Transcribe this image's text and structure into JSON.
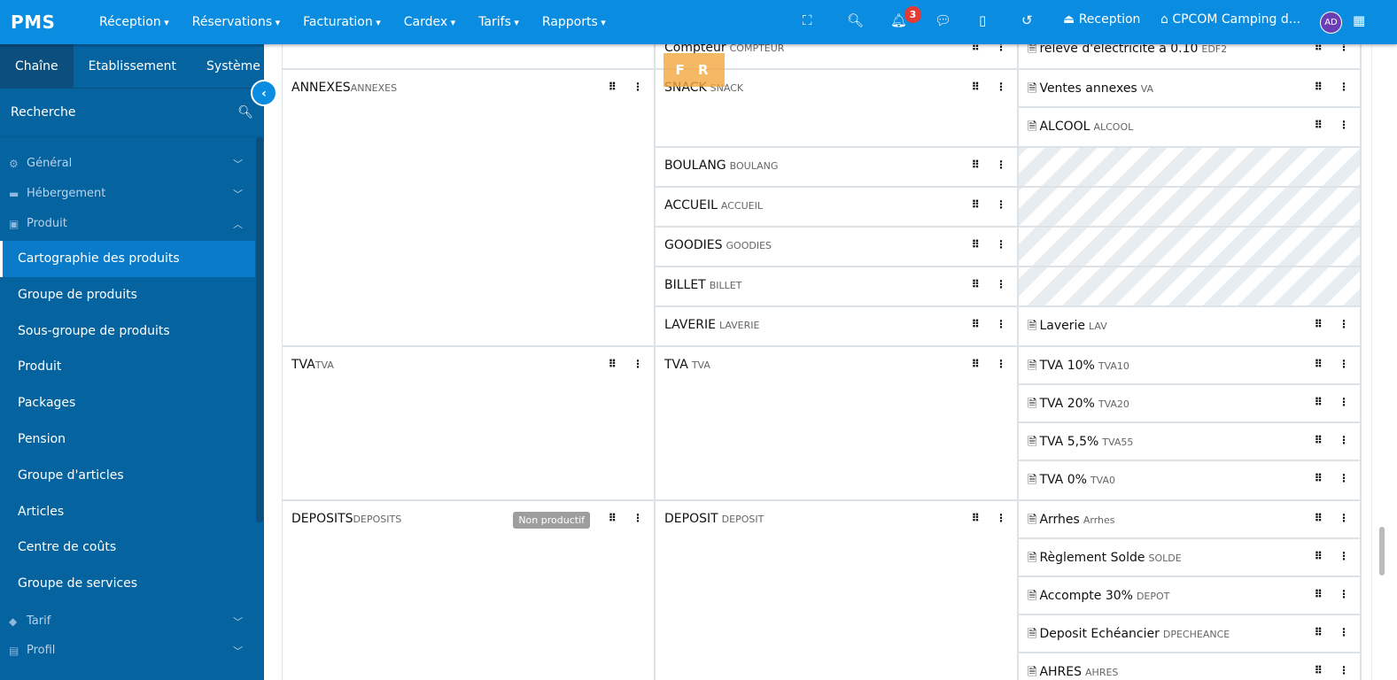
{
  "topbar": {
    "logo": "PMS",
    "nav": [
      "Réception",
      "Réservations",
      "Facturation",
      "Cardex",
      "Tarifs",
      "Rapports"
    ],
    "notifications": "3",
    "reception": "Reception",
    "establishment": "CPCOM Camping d...",
    "avatar": "AD",
    "icons": [
      "fullscreen-icon",
      "search-icon",
      "bell-icon",
      "chat-icon",
      "tablet-icon",
      "history-icon",
      "inbox-icon",
      "home-icon",
      "apps-grid-icon"
    ]
  },
  "sidebar": {
    "tabs": [
      "Chaîne",
      "Etablissement",
      "Système"
    ],
    "active_tab": "Chaîne",
    "search_placeholder": "Recherche",
    "sections_top": [
      {
        "label": "Général",
        "icon": "cogs-icon"
      },
      {
        "label": "Hébergement",
        "icon": "bed-icon"
      },
      {
        "label": "Produit",
        "icon": "box-icon"
      }
    ],
    "items": [
      "Cartographie des produits",
      "Groupe de produits",
      "Sous-groupe de produits",
      "Produit",
      "Packages",
      "Pension",
      "Groupe d'articles",
      "Articles",
      "Centre de coûts",
      "Groupe de services"
    ],
    "active_item": "Cartographie des produits",
    "sections_bottom": [
      {
        "label": "Tarif",
        "icon": "tag-icon"
      },
      {
        "label": "Profil",
        "icon": "id-card-icon"
      }
    ]
  },
  "language_badge": "F R",
  "groups": [
    {
      "name": "",
      "code": "",
      "subgroups": [
        {
          "name": "Compteur",
          "code": "COMPTEUR",
          "products": [
            {
              "name": "relevé d'électricité à 0.10",
              "code": "EDF2"
            }
          ]
        }
      ]
    },
    {
      "name": "ANNEXES",
      "code": "ANNEXES",
      "subgroups": [
        {
          "name": "SNACK",
          "code": "SNACK",
          "products": [
            {
              "name": "Ventes annexes",
              "code": "VA"
            },
            {
              "name": "ALCOOL",
              "code": "ALCOOL"
            }
          ]
        },
        {
          "name": "BOULANG",
          "code": "BOULANG",
          "products": []
        },
        {
          "name": "ACCUEIL",
          "code": "ACCUEIL",
          "products": []
        },
        {
          "name": "GOODIES",
          "code": "GOODIES",
          "products": []
        },
        {
          "name": "BILLET",
          "code": "BILLET",
          "products": []
        },
        {
          "name": "LAVERIE",
          "code": "LAVERIE",
          "products": [
            {
              "name": "Laverie",
              "code": "LAV"
            }
          ]
        }
      ]
    },
    {
      "name": "TVA",
      "code": "TVA",
      "subgroups": [
        {
          "name": "TVA",
          "code": "TVA",
          "products": [
            {
              "name": "TVA 10%",
              "code": "TVA10"
            },
            {
              "name": "TVA 20%",
              "code": "TVA20"
            },
            {
              "name": "TVA 5,5%",
              "code": "TVA55"
            },
            {
              "name": "TVA 0%",
              "code": "TVA0"
            }
          ]
        }
      ]
    },
    {
      "name": "DEPOSITS",
      "code": "DEPOSITS",
      "badge": "Non productif",
      "subgroups": [
        {
          "name": "DEPOSIT",
          "code": "DEPOSIT",
          "products": [
            {
              "name": "Arrhes",
              "code": "Arrhes"
            },
            {
              "name": "Règlement Solde",
              "code": "SOLDE"
            },
            {
              "name": "Accompte 30%",
              "code": "DEPOT"
            },
            {
              "name": "Deposit Echéancier",
              "code": "DPECHEANCE"
            },
            {
              "name": "AHRES",
              "code": "AHRES"
            }
          ]
        }
      ]
    }
  ]
}
